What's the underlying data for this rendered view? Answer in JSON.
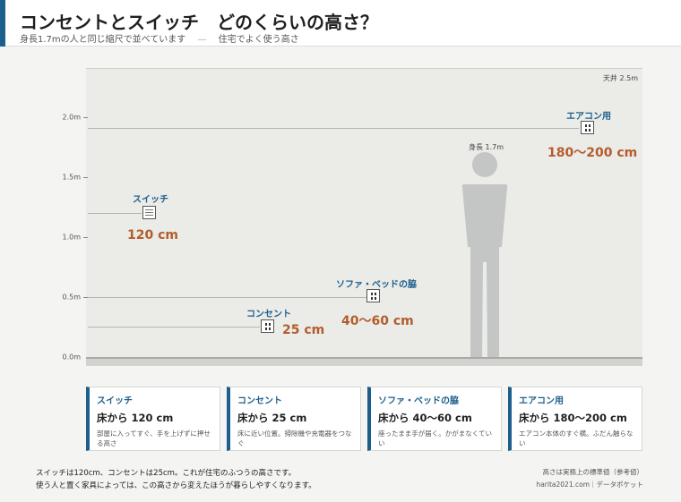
{
  "header": {
    "title": "コンセントとスイッチ　どのくらいの高さ？",
    "subtitle_left": "身長1.7mの人と同じ縮尺で並べています",
    "subtitle_sep": "—",
    "subtitle_right": "住宅でよく使う高さ"
  },
  "axis": {
    "ticks": [
      "0.0m",
      "0.5m",
      "1.0m",
      "1.5m",
      "2.0m"
    ],
    "ceiling": "天井 2.5m"
  },
  "person": {
    "label": "身長 1.7m",
    "height_m": 1.7
  },
  "items": [
    {
      "name": "スイッチ",
      "value": "120 cm",
      "icon": "switch-icon"
    },
    {
      "name": "コンセント",
      "value": "25 cm",
      "icon": "outlet-icon"
    },
    {
      "name": "ソファ・ベッドの脇",
      "value": "40〜60 cm",
      "icon": "outlet-icon"
    },
    {
      "name": "エアコン用",
      "value": "180〜200 cm",
      "icon": "outlet-icon"
    }
  ],
  "cards": [
    {
      "name": "スイッチ",
      "height": "床から 120 cm",
      "desc": "部屋に入ってすぐ、手を上げずに押せる高さ"
    },
    {
      "name": "コンセント",
      "height": "床から 25 cm",
      "desc": "床に近い位置。掃除機や充電器をつなぐ"
    },
    {
      "name": "ソファ・ベッドの脇",
      "height": "床から 40〜60 cm",
      "desc": "座ったまま手が届く。かがまなくていい"
    },
    {
      "name": "エアコン用",
      "height": "床から 180〜200 cm",
      "desc": "エアコン本体のすぐ横。ふだん触らない"
    }
  ],
  "footer": {
    "note_1": "スイッチは120cm、コンセントは25cm。これが住宅のふつうの高さです。",
    "note_2": "使う人と置く家具によっては、この高さから変えたほうが暮らしやすくなります。",
    "credit_1": "高さは実務上の標準値（参考値）",
    "credit_2": "harita2021.com｜データポケット"
  },
  "colors": {
    "accent": "#1d5f8c",
    "value": "#b35d2c",
    "figure": "#c4c5c5"
  }
}
